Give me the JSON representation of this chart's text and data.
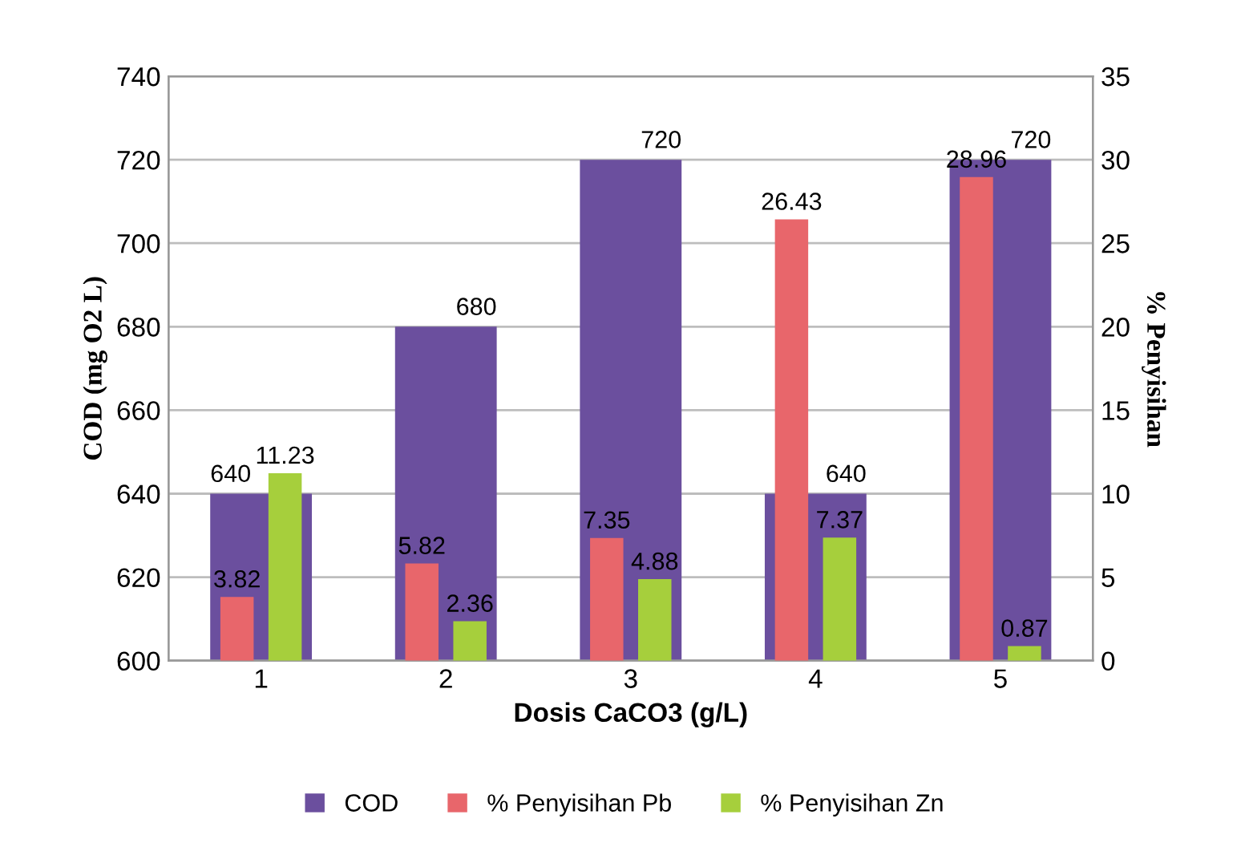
{
  "chart_data": {
    "type": "bar",
    "xlabel": "Dosis CaCO3 (g/L)",
    "ylabel": "COD (mg O2 L)",
    "y2label": "% Penyisihan",
    "categories": [
      "1",
      "2",
      "3",
      "4",
      "5"
    ],
    "series": [
      {
        "name": "COD",
        "color": "#6b4f9e",
        "values": [
          640,
          680,
          720,
          640,
          720
        ]
      },
      {
        "name": "% Penyisihan Pb",
        "color": "#e8666b",
        "values": [
          3.82,
          5.82,
          7.35,
          26.43,
          28.96
        ],
        "axis": "y2"
      },
      {
        "name": "% Penyisihan Zn",
        "color": "#a6cf3c",
        "values": [
          11.23,
          2.36,
          4.88,
          7.37,
          0.87
        ],
        "axis": "y2"
      }
    ],
    "ylim": [
      600,
      740
    ],
    "yticks": [
      600,
      620,
      640,
      660,
      680,
      700,
      720,
      740
    ],
    "y2lim": [
      0,
      35
    ],
    "y2ticks": [
      0,
      5,
      10,
      15,
      20,
      25,
      30,
      35
    ],
    "grid": "y",
    "legend": "bottom",
    "data_labels": true
  }
}
